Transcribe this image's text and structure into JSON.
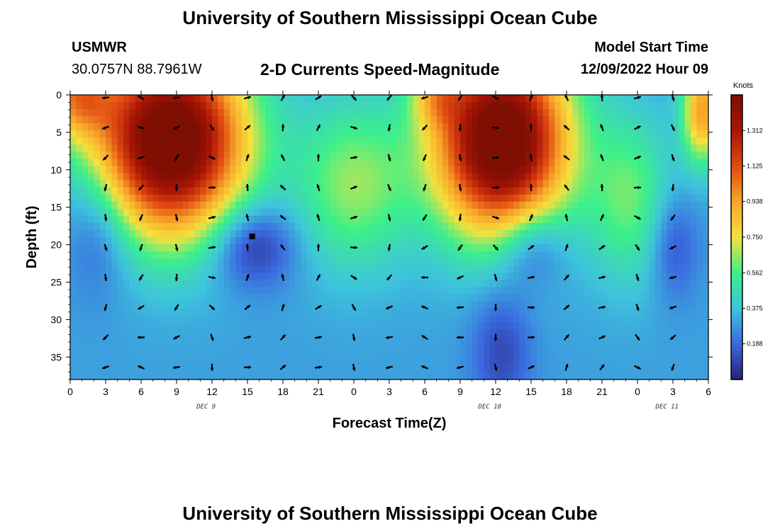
{
  "header": {
    "title": "University of Southern Mississippi Ocean Cube",
    "station": "USMWR",
    "coords": "30.0757N  88.7961W",
    "subtitle": "2-D Currents Speed-Magnitude",
    "model_start_label": "Model Start Time",
    "model_start_value": "12/09/2022 Hour 09"
  },
  "footer": {
    "title": "University of Southern Mississippi Ocean Cube"
  },
  "chart_data": {
    "type": "heatmap",
    "title": "2-D Currents Speed-Magnitude",
    "xlabel": "Forecast Time(Z)",
    "ylabel": "Depth (ft)",
    "x_tick_labels": [
      "0",
      "3",
      "6",
      "9",
      "12",
      "15",
      "18",
      "21",
      "0",
      "3",
      "6",
      "9",
      "12",
      "15",
      "18",
      "21",
      "0",
      "3",
      "6"
    ],
    "x_range_hours": [
      0,
      54
    ],
    "date_labels": [
      {
        "text": "DEC 9",
        "hour": 11.5
      },
      {
        "text": "DEC 10",
        "hour": 35.5
      },
      {
        "text": "DEC 11",
        "hour": 50.5
      }
    ],
    "y_tick_labels": [
      "0",
      "5",
      "10",
      "15",
      "20",
      "25",
      "30",
      "35"
    ],
    "y_range_ft": [
      0,
      38
    ],
    "colorbar": {
      "unit": "Knots",
      "range": [
        0,
        1.5
      ],
      "ticks": [
        "1.312",
        "1.125",
        "0.938",
        "0.750",
        "0.562",
        "0.375",
        "0.188"
      ],
      "tick_values": [
        1.312,
        1.125,
        0.938,
        0.75,
        0.562,
        0.375,
        0.188
      ],
      "colors": [
        "#2a1f7a",
        "#3a6ae0",
        "#3dc4dc",
        "#3cf08a",
        "#f5e13c",
        "#f8a62a",
        "#e04a10",
        "#a81505",
        "#7a0e02"
      ]
    },
    "speed_field_description": "High speeds (>1.3 kt) near surface around hours 3-12 and 33-39; low speeds (<0.2 kt) near 15-20 ft around hour 15 and hour 39; moderate elsewhere.",
    "vectors": {
      "hours": [
        3,
        6,
        9,
        12,
        15,
        18,
        21,
        24,
        27,
        30,
        33,
        36,
        39,
        42,
        45,
        48,
        51
      ],
      "depths_ft": [
        0,
        4,
        8,
        12,
        16,
        20,
        24,
        28,
        32,
        36
      ]
    },
    "speed_blobs": [
      {
        "t": 8.5,
        "d": 6,
        "st": 4.5,
        "sd": 9,
        "amp": 1.35
      },
      {
        "t": 36.5,
        "d": 6,
        "st": 4.0,
        "sd": 9,
        "amp": 1.35
      },
      {
        "t": 24,
        "d": 12,
        "st": 3.5,
        "sd": 8,
        "amp": 0.35
      },
      {
        "t": 47.5,
        "d": 14,
        "st": 2.5,
        "sd": 8,
        "amp": 0.3
      },
      {
        "t": 0.5,
        "d": 0,
        "st": 2.0,
        "sd": 4,
        "amp": 0.55
      },
      {
        "t": 53.5,
        "d": 2,
        "st": 1.2,
        "sd": 5,
        "amp": 0.65
      },
      {
        "t": 31,
        "d": 0,
        "st": 1.5,
        "sd": 3,
        "amp": 0.3
      }
    ],
    "low_blobs": [
      {
        "t": 15.5,
        "d": 20,
        "st": 2.5,
        "sd": 4,
        "amp": 0.3
      },
      {
        "t": 2.5,
        "d": 18,
        "st": 2.0,
        "sd": 6,
        "amp": 0.2
      },
      {
        "t": 39,
        "d": 20,
        "st": 2.0,
        "sd": 4,
        "amp": 0.25
      },
      {
        "t": 36.5,
        "d": 34,
        "st": 1.8,
        "sd": 6,
        "amp": 0.2
      },
      {
        "t": 51,
        "d": 20,
        "st": 1.5,
        "sd": 5,
        "amp": 0.2
      }
    ]
  }
}
